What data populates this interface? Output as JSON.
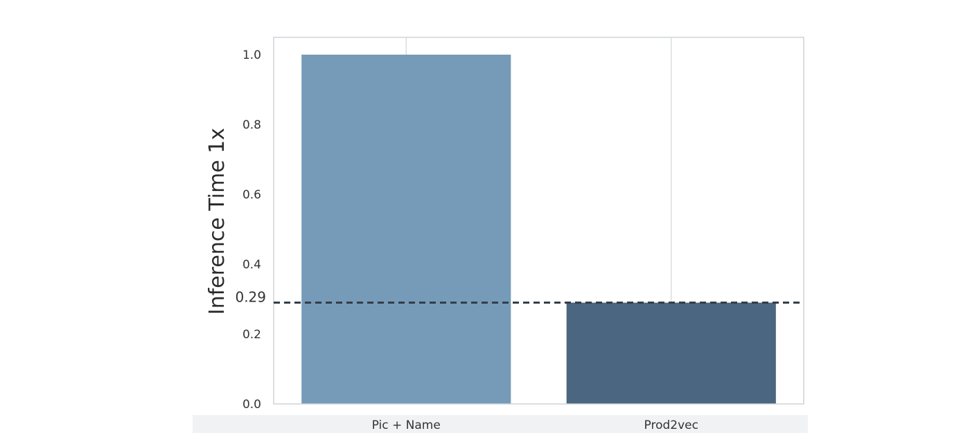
{
  "chart_data": {
    "type": "bar",
    "categories": [
      "Pic + Name",
      "Prod2vec"
    ],
    "values": [
      1.0,
      0.29
    ],
    "colors": [
      "#769bb9",
      "#4a6681"
    ],
    "ylabel": "Inference Time 1x",
    "xlabel": "",
    "ylim": [
      0,
      1.05
    ],
    "yticks": [
      "0.0",
      "0.2",
      "0.4",
      "0.6",
      "0.8",
      "1.0"
    ],
    "reference_line": {
      "value": 0.29,
      "label": "0.29",
      "style": "dashed",
      "color": "#333d47"
    },
    "grid": "vertical",
    "legend": "none"
  }
}
